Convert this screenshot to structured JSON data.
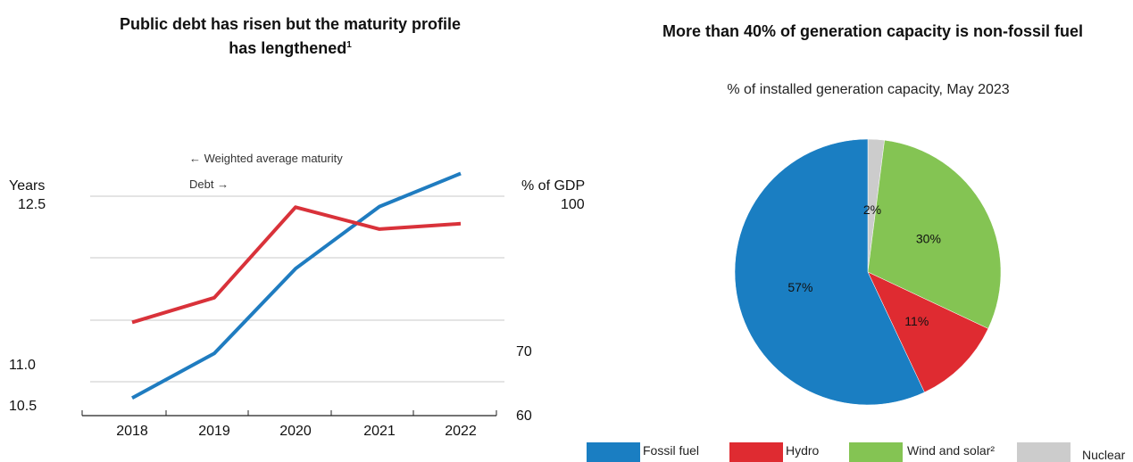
{
  "chart_data": [
    {
      "type": "line",
      "title_line1": "Public debt has risen but the maturity profile",
      "title_line2": "has lengthened",
      "title_footnote": "1",
      "left_axis": {
        "unit": "Years",
        "top_label": "12.5",
        "labels": [
          "11.0",
          "10.5"
        ]
      },
      "right_axis": {
        "unit": "% of GDP",
        "top_label": "100",
        "labels": [
          "70",
          "60"
        ]
      },
      "categories": [
        "2018",
        "2019",
        "2020",
        "2021",
        "2022"
      ],
      "annotations": {
        "maturity": "← Weighted average maturity",
        "debt": "Debt →"
      },
      "series": [
        {
          "key": "maturity",
          "axis": "left",
          "color": "#1f7cc0",
          "values": [
            10.55,
            10.98,
            11.8,
            12.4,
            12.72
          ]
        },
        {
          "key": "debt",
          "axis": "right",
          "color": "#d9323a",
          "values": [
            77,
            81.5,
            98,
            94,
            95
          ]
        }
      ]
    },
    {
      "type": "pie",
      "title": "More than 40% of generation capacity is non-fossil fuel",
      "subtitle": "% of installed generation capacity, May 2023",
      "slices": [
        {
          "name": "Nuclear",
          "value": 2,
          "label": "2%",
          "color": "#cccccc"
        },
        {
          "name": "Wind and solar²",
          "value": 30,
          "label": "30%",
          "color": "#84c453"
        },
        {
          "name": "Hydro",
          "value": 11,
          "label": "11%",
          "color": "#df2b31"
        },
        {
          "name": "Fossil fuel",
          "value": 57,
          "label": "57%",
          "color": "#1a7ec2"
        }
      ],
      "legend": [
        "Fossil fuel",
        "Hydro",
        "Wind and solar²",
        "Nuclear"
      ],
      "legend_placement": "bottom"
    }
  ]
}
